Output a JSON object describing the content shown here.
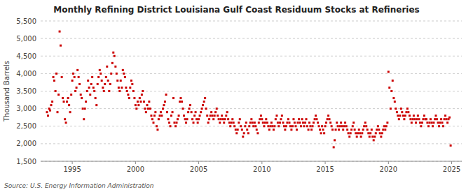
{
  "chart_data": {
    "type": "scatter",
    "title": "Monthly Refining District Louisiana Gulf Coast Residuum Stocks at Refineries",
    "y_label": "Thousand Barrels",
    "annotations": [
      "Source: U.S. Energy Information Administration"
    ],
    "color": "#CC0000",
    "marker": "square",
    "grid": true,
    "xlim": [
      1992.5,
      2025.8
    ],
    "xticks": [
      1995,
      2000,
      2005,
      2010,
      2015,
      2020,
      2025
    ],
    "ylim": [
      1500,
      5500
    ],
    "yticks": [
      {
        "value": 1500,
        "label": "1,500"
      },
      {
        "value": 2000,
        "label": "2,000"
      },
      {
        "value": 2500,
        "label": "2,500"
      },
      {
        "value": 3000,
        "label": "3,000"
      },
      {
        "value": 3500,
        "label": "3,500"
      },
      {
        "value": 4000,
        "label": "4,000"
      },
      {
        "value": 4500,
        "label": "4,500"
      },
      {
        "value": 5000,
        "label": "5,000"
      },
      {
        "value": 5500,
        "label": "5,500"
      }
    ],
    "x": [
      1993.0,
      1993.08,
      1993.17,
      1993.25,
      1993.33,
      1993.42,
      1993.5,
      1993.58,
      1993.67,
      1993.75,
      1993.83,
      1993.92,
      1994.0,
      1994.08,
      1994.17,
      1994.25,
      1994.33,
      1994.42,
      1994.5,
      1994.58,
      1994.67,
      1994.75,
      1994.83,
      1994.92,
      1995.0,
      1995.08,
      1995.17,
      1995.25,
      1995.33,
      1995.42,
      1995.5,
      1995.58,
      1995.67,
      1995.75,
      1995.83,
      1995.92,
      1996.0,
      1996.08,
      1996.17,
      1996.25,
      1996.33,
      1996.42,
      1996.5,
      1996.58,
      1996.67,
      1996.75,
      1996.83,
      1996.92,
      1997.0,
      1997.08,
      1997.17,
      1997.25,
      1997.33,
      1997.42,
      1997.5,
      1997.58,
      1997.67,
      1997.75,
      1997.83,
      1997.92,
      1998.0,
      1998.08,
      1998.17,
      1998.25,
      1998.33,
      1998.42,
      1998.5,
      1998.58,
      1998.67,
      1998.75,
      1998.83,
      1998.92,
      1999.0,
      1999.08,
      1999.17,
      1999.25,
      1999.33,
      1999.42,
      1999.5,
      1999.58,
      1999.67,
      1999.75,
      1999.83,
      1999.92,
      2000.0,
      2000.08,
      2000.17,
      2000.25,
      2000.33,
      2000.42,
      2000.5,
      2000.58,
      2000.67,
      2000.75,
      2000.83,
      2000.92,
      2001.0,
      2001.08,
      2001.17,
      2001.25,
      2001.33,
      2001.42,
      2001.5,
      2001.58,
      2001.67,
      2001.75,
      2001.83,
      2001.92,
      2002.0,
      2002.08,
      2002.17,
      2002.25,
      2002.33,
      2002.42,
      2002.5,
      2002.58,
      2002.67,
      2002.75,
      2002.83,
      2002.92,
      2003.0,
      2003.08,
      2003.17,
      2003.25,
      2003.33,
      2003.42,
      2003.5,
      2003.58,
      2003.67,
      2003.75,
      2003.83,
      2003.92,
      2004.0,
      2004.08,
      2004.17,
      2004.25,
      2004.33,
      2004.42,
      2004.5,
      2004.58,
      2004.67,
      2004.75,
      2004.83,
      2004.92,
      2005.0,
      2005.08,
      2005.17,
      2005.25,
      2005.33,
      2005.42,
      2005.5,
      2005.58,
      2005.67,
      2005.75,
      2005.83,
      2005.92,
      2006.0,
      2006.08,
      2006.17,
      2006.25,
      2006.33,
      2006.42,
      2006.5,
      2006.58,
      2006.67,
      2006.75,
      2006.83,
      2006.92,
      2007.0,
      2007.08,
      2007.17,
      2007.25,
      2007.33,
      2007.42,
      2007.5,
      2007.58,
      2007.67,
      2007.75,
      2007.83,
      2007.92,
      2008.0,
      2008.08,
      2008.17,
      2008.25,
      2008.33,
      2008.42,
      2008.5,
      2008.58,
      2008.67,
      2008.75,
      2008.83,
      2008.92,
      2009.0,
      2009.08,
      2009.17,
      2009.25,
      2009.33,
      2009.42,
      2009.5,
      2009.58,
      2009.67,
      2009.75,
      2009.83,
      2009.92,
      2010.0,
      2010.08,
      2010.17,
      2010.25,
      2010.33,
      2010.42,
      2010.5,
      2010.58,
      2010.67,
      2010.75,
      2010.83,
      2010.92,
      2011.0,
      2011.08,
      2011.17,
      2011.25,
      2011.33,
      2011.42,
      2011.5,
      2011.58,
      2011.67,
      2011.75,
      2011.83,
      2011.92,
      2012.0,
      2012.08,
      2012.17,
      2012.25,
      2012.33,
      2012.42,
      2012.5,
      2012.58,
      2012.67,
      2012.75,
      2012.83,
      2012.92,
      2013.0,
      2013.08,
      2013.17,
      2013.25,
      2013.33,
      2013.42,
      2013.5,
      2013.58,
      2013.67,
      2013.75,
      2013.83,
      2013.92,
      2014.0,
      2014.08,
      2014.17,
      2014.25,
      2014.33,
      2014.42,
      2014.5,
      2014.58,
      2014.67,
      2014.75,
      2014.83,
      2014.92,
      2015.0,
      2015.08,
      2015.17,
      2015.25,
      2015.33,
      2015.42,
      2015.5,
      2015.58,
      2015.67,
      2015.75,
      2015.83,
      2015.92,
      2016.0,
      2016.08,
      2016.17,
      2016.25,
      2016.33,
      2016.42,
      2016.5,
      2016.58,
      2016.67,
      2016.75,
      2016.83,
      2016.92,
      2017.0,
      2017.08,
      2017.17,
      2017.25,
      2017.33,
      2017.42,
      2017.5,
      2017.58,
      2017.67,
      2017.75,
      2017.83,
      2017.92,
      2018.0,
      2018.08,
      2018.17,
      2018.25,
      2018.33,
      2018.42,
      2018.5,
      2018.58,
      2018.67,
      2018.75,
      2018.83,
      2018.92,
      2019.0,
      2019.08,
      2019.17,
      2019.25,
      2019.33,
      2019.42,
      2019.5,
      2019.58,
      2019.67,
      2019.75,
      2019.83,
      2019.92,
      2020.0,
      2020.08,
      2020.17,
      2020.25,
      2020.33,
      2020.42,
      2020.5,
      2020.58,
      2020.67,
      2020.75,
      2020.83,
      2020.92,
      2021.0,
      2021.08,
      2021.17,
      2021.25,
      2021.33,
      2021.42,
      2021.5,
      2021.58,
      2021.67,
      2021.75,
      2021.83,
      2021.92,
      2022.0,
      2022.08,
      2022.17,
      2022.25,
      2022.33,
      2022.42,
      2022.5,
      2022.58,
      2022.67,
      2022.75,
      2022.83,
      2022.92,
      2023.0,
      2023.08,
      2023.17,
      2023.25,
      2023.33,
      2023.42,
      2023.5,
      2023.58,
      2023.67,
      2023.75,
      2023.83,
      2023.92,
      2024.0,
      2024.08,
      2024.17,
      2024.25,
      2024.33,
      2024.42,
      2024.5,
      2024.58,
      2024.67,
      2024.75,
      2024.83,
      2024.92
    ],
    "values": [
      2900,
      2800,
      3000,
      2950,
      3100,
      3200,
      3900,
      3800,
      3500,
      4000,
      2900,
      3400,
      5200,
      4800,
      3900,
      3300,
      3200,
      2700,
      2600,
      3200,
      3300,
      3100,
      2900,
      3400,
      3800,
      4000,
      3900,
      3500,
      3600,
      4100,
      3900,
      3700,
      3400,
      3300,
      3000,
      2700,
      3000,
      3200,
      3500,
      3800,
      3600,
      3400,
      3700,
      3900,
      3600,
      3500,
      3300,
      3100,
      3700,
      3900,
      4100,
      4000,
      3800,
      3600,
      3500,
      3700,
      3900,
      4200,
      3800,
      3500,
      3700,
      4000,
      4300,
      4600,
      4500,
      4200,
      4000,
      3800,
      3600,
      3500,
      3800,
      3600,
      4100,
      4000,
      3900,
      3600,
      3500,
      3400,
      3300,
      3600,
      3800,
      3700,
      3500,
      3300,
      3100,
      3000,
      3200,
      3100,
      3300,
      3200,
      3400,
      3500,
      3200,
      3000,
      2900,
      3100,
      3000,
      3200,
      3000,
      2800,
      2700,
      2600,
      2800,
      2900,
      2500,
      2400,
      2700,
      2800,
      2900,
      2800,
      3000,
      3100,
      3200,
      3400,
      2900,
      2700,
      2600,
      2500,
      2800,
      2900,
      3300,
      2600,
      2500,
      2600,
      2700,
      2800,
      3200,
      3300,
      3200,
      3000,
      2800,
      2700,
      2600,
      2700,
      2900,
      3000,
      3100,
      2900,
      2700,
      2600,
      2800,
      2900,
      2700,
      2600,
      2700,
      2800,
      2900,
      3000,
      3100,
      3200,
      3300,
      3000,
      2800,
      2600,
      2700,
      2800,
      2900,
      2800,
      2700,
      2800,
      2900,
      3000,
      2800,
      2700,
      2600,
      2700,
      2800,
      2700,
      2600,
      2700,
      2800,
      2900,
      2700,
      2600,
      2500,
      2600,
      2700,
      2600,
      2500,
      2400,
      2300,
      2400,
      2600,
      2700,
      2500,
      2400,
      2200,
      2300,
      2500,
      2600,
      2400,
      2300,
      2500,
      2600,
      2700,
      2600,
      2500,
      2600,
      2500,
      2400,
      2300,
      2600,
      2700,
      2800,
      2700,
      2600,
      2500,
      2600,
      2700,
      2600,
      2500,
      2400,
      2500,
      2600,
      2500,
      2400,
      2500,
      2700,
      2800,
      2600,
      2500,
      2600,
      2700,
      2800,
      2600,
      2500,
      2400,
      2500,
      2600,
      2700,
      2600,
      2500,
      2400,
      2500,
      2700,
      2600,
      2500,
      2400,
      2600,
      2700,
      2600,
      2500,
      2700,
      2600,
      2500,
      2600,
      2700,
      2500,
      2400,
      2600,
      2500,
      2400,
      2500,
      2600,
      2700,
      2800,
      2700,
      2600,
      2500,
      2400,
      2300,
      2500,
      2400,
      2300,
      2500,
      2600,
      2700,
      2800,
      2700,
      2600,
      2500,
      2400,
      1900,
      2100,
      2400,
      2600,
      2500,
      2400,
      2500,
      2600,
      2500,
      2400,
      2500,
      2600,
      2500,
      2400,
      2300,
      2200,
      2300,
      2400,
      2500,
      2600,
      2400,
      2300,
      2200,
      2300,
      2400,
      2300,
      2200,
      2300,
      2400,
      2500,
      2600,
      2500,
      2400,
      2300,
      2200,
      2300,
      2400,
      2200,
      2100,
      2200,
      2300,
      2400,
      2500,
      2400,
      2300,
      2200,
      2300,
      2400,
      2500,
      2400,
      2500,
      2600,
      4050,
      3600,
      3000,
      3500,
      3800,
      3300,
      3200,
      3000,
      2900,
      2800,
      2700,
      2800,
      3000,
      2900,
      2800,
      2700,
      2800,
      2900,
      3000,
      2900,
      2800,
      2700,
      2600,
      2700,
      2800,
      2700,
      2600,
      2700,
      2800,
      2700,
      2600,
      2500,
      2600,
      2700,
      2800,
      2700,
      2700,
      2600,
      2500,
      2600,
      2700,
      2600,
      2500,
      2600,
      2700,
      2800,
      2700,
      2600,
      2500,
      2600,
      2700,
      2600,
      2500,
      2700,
      2800,
      2700,
      2600,
      2700,
      2750,
      1950
    ]
  }
}
